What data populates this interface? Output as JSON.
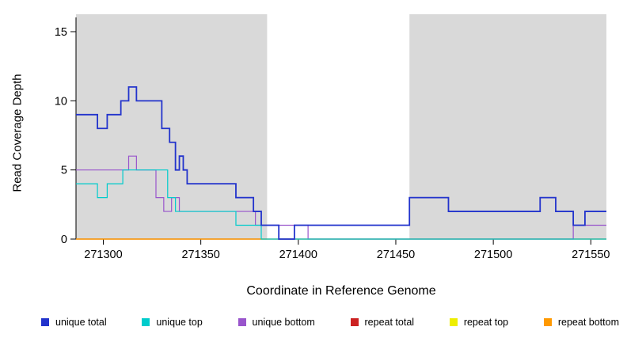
{
  "chart_data": {
    "type": "line",
    "subtype": "step",
    "title": "",
    "xlabel": "Coordinate in Reference Genome",
    "ylabel": "Read Coverage Depth",
    "xlim": [
      271286,
      271558
    ],
    "ylim": [
      0,
      15
    ],
    "xticks": [
      271300,
      271350,
      271400,
      271450,
      271500,
      271550
    ],
    "yticks": [
      0,
      5,
      10,
      15
    ],
    "grid": false,
    "legend_position": "bottom",
    "shaded_region_color": "#d9d9d9",
    "shaded_regions": [
      {
        "x0": 271286,
        "x1": 271384
      },
      {
        "x0": 271457,
        "x1": 271558
      }
    ],
    "series": [
      {
        "name": "repeat top",
        "color": "#eeee00",
        "lw": 1.2,
        "steps": [
          [
            271286,
            0
          ]
        ]
      },
      {
        "name": "repeat total",
        "color": "#cc2222",
        "lw": 1.2,
        "steps": [
          [
            271286,
            0
          ]
        ]
      },
      {
        "name": "repeat bottom",
        "color": "#ff9900",
        "lw": 1.2,
        "xend": 271384,
        "steps": [
          [
            271286,
            0
          ]
        ]
      },
      {
        "name": "unique bottom",
        "color": "#9955cc",
        "lw": 1.2,
        "steps": [
          [
            271286,
            5
          ],
          [
            271313,
            6
          ],
          [
            271317,
            5
          ],
          [
            271327,
            3
          ],
          [
            271331,
            2
          ],
          [
            271335,
            3
          ],
          [
            271339,
            2
          ],
          [
            271378,
            1
          ],
          [
            271405,
            0
          ],
          [
            271541,
            1
          ]
        ]
      },
      {
        "name": "unique top",
        "color": "#00cccc",
        "lw": 1.2,
        "steps": [
          [
            271286,
            4
          ],
          [
            271297,
            3
          ],
          [
            271302,
            4
          ],
          [
            271310,
            5
          ],
          [
            271333,
            3
          ],
          [
            271337,
            2
          ],
          [
            271368,
            1
          ],
          [
            271381,
            0
          ]
        ]
      },
      {
        "name": "unique total",
        "color": "#2233cc",
        "lw": 1.8,
        "steps": [
          [
            271286,
            9
          ],
          [
            271297,
            8
          ],
          [
            271302,
            9
          ],
          [
            271309,
            10
          ],
          [
            271313,
            11
          ],
          [
            271317,
            10
          ],
          [
            271330,
            8
          ],
          [
            271334,
            7
          ],
          [
            271337,
            5
          ],
          [
            271339,
            6
          ],
          [
            271341,
            5
          ],
          [
            271343,
            4
          ],
          [
            271368,
            3
          ],
          [
            271377,
            2
          ],
          [
            271381,
            1
          ],
          [
            271390,
            0
          ],
          [
            271398,
            1
          ],
          [
            271457,
            3
          ],
          [
            271477,
            2
          ],
          [
            271524,
            3
          ],
          [
            271532,
            2
          ],
          [
            271541,
            1
          ],
          [
            271547,
            2
          ]
        ]
      }
    ],
    "legend": [
      {
        "label": "unique total",
        "color": "#2233cc"
      },
      {
        "label": "unique top",
        "color": "#00cccc"
      },
      {
        "label": "unique bottom",
        "color": "#9955cc"
      },
      {
        "label": "repeat total",
        "color": "#cc2222"
      },
      {
        "label": "repeat top",
        "color": "#eeee00"
      },
      {
        "label": "repeat bottom",
        "color": "#ff9900"
      }
    ]
  }
}
